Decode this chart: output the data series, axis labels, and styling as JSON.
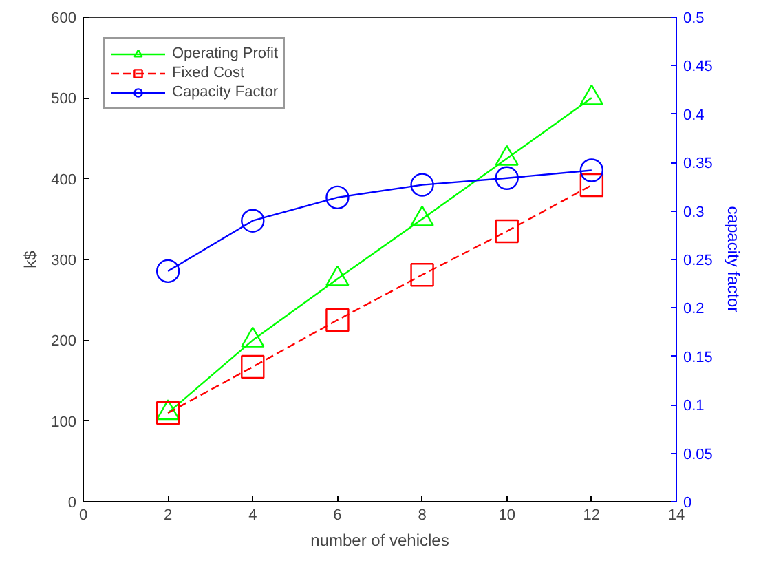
{
  "chart_data": {
    "type": "line",
    "xlabel": "number of vehicles",
    "ylabel": "k$",
    "y2label": "capacity factor",
    "x": [
      2,
      4,
      6,
      8,
      10,
      12
    ],
    "series": [
      {
        "name": "Operating Profit",
        "color": "#00ff00",
        "marker": "triangle",
        "line_style": "solid",
        "values": [
          110,
          200,
          276,
          350,
          425,
          500
        ]
      },
      {
        "name": "Fixed Cost",
        "color": "#ff0000",
        "marker": "square",
        "line_style": "dashed",
        "values": [
          110,
          167,
          225,
          281,
          335,
          392
        ]
      },
      {
        "name": "Capacity Factor",
        "color": "#0000ff",
        "marker": "circle",
        "line_style": "solid",
        "axis": "y2",
        "values": [
          0.238,
          0.29,
          0.314,
          0.327,
          0.334,
          0.342
        ]
      }
    ],
    "xlim": [
      0,
      14
    ],
    "xticks": [
      0,
      2,
      4,
      6,
      8,
      10,
      12,
      14
    ],
    "ylim": [
      0,
      600
    ],
    "yticks": [
      0,
      100,
      200,
      300,
      400,
      500,
      600
    ],
    "y2lim": [
      0,
      0.5
    ],
    "y2ticks": [
      0,
      0.05,
      0.1,
      0.15,
      0.2,
      0.25,
      0.3,
      0.35,
      0.4,
      0.45,
      0.5
    ],
    "grid": false,
    "legend": "top left"
  }
}
